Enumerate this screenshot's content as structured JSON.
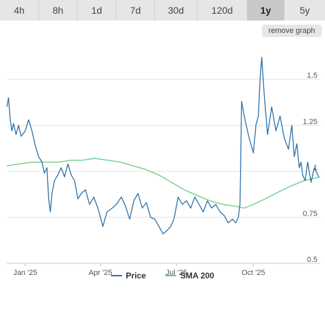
{
  "tabs": [
    {
      "label": "4h",
      "active": false
    },
    {
      "label": "8h",
      "active": false
    },
    {
      "label": "1d",
      "active": false
    },
    {
      "label": "7d",
      "active": false
    },
    {
      "label": "30d",
      "active": false
    },
    {
      "label": "120d",
      "active": false
    },
    {
      "label": "1y",
      "active": true
    },
    {
      "label": "5y",
      "active": false
    }
  ],
  "remove_graph_label": "remove graph",
  "chart_data": {
    "type": "line",
    "xlim": [
      "2024-12-10",
      "2025-12-20"
    ],
    "ylim": [
      0.5,
      1.7
    ],
    "grid": true,
    "legend_placement": "bottom-center",
    "x_ticks": [
      {
        "date": "2025-01-01",
        "label": "Jan '25"
      },
      {
        "date": "2025-04-01",
        "label": "Apr '25"
      },
      {
        "date": "2025-07-01",
        "label": "Jul '25"
      },
      {
        "date": "2025-10-01",
        "label": "Oct '25"
      }
    ],
    "y_ticks": [
      0.5,
      0.75,
      1,
      1.25,
      1.5
    ],
    "y_tick_labels": [
      "0.5",
      "0.75",
      "1",
      "1.25",
      "1.5"
    ],
    "series": [
      {
        "name": "Price",
        "color": "#2a6fa8",
        "x": [
          "2024-12-10",
          "2024-12-12",
          "2024-12-14",
          "2024-12-16",
          "2024-12-18",
          "2024-12-21",
          "2024-12-24",
          "2024-12-27",
          "2025-01-01",
          "2025-01-05",
          "2025-01-09",
          "2025-01-13",
          "2025-01-17",
          "2025-01-21",
          "2025-01-24",
          "2025-01-27",
          "2025-01-29",
          "2025-01-31",
          "2025-02-02",
          "2025-02-05",
          "2025-02-09",
          "2025-02-13",
          "2025-02-17",
          "2025-02-21",
          "2025-02-25",
          "2025-03-01",
          "2025-03-05",
          "2025-03-09",
          "2025-03-14",
          "2025-03-19",
          "2025-03-24",
          "2025-03-29",
          "2025-04-04",
          "2025-04-07",
          "2025-04-09",
          "2025-04-15",
          "2025-04-20",
          "2025-04-26",
          "2025-05-01",
          "2025-05-06",
          "2025-05-11",
          "2025-05-16",
          "2025-05-21",
          "2025-05-26",
          "2025-05-31",
          "2025-06-05",
          "2025-06-10",
          "2025-06-15",
          "2025-06-20",
          "2025-06-24",
          "2025-06-28",
          "2025-07-03",
          "2025-07-08",
          "2025-07-13",
          "2025-07-18",
          "2025-07-23",
          "2025-07-28",
          "2025-08-02",
          "2025-08-07",
          "2025-08-12",
          "2025-08-17",
          "2025-08-22",
          "2025-08-27",
          "2025-09-01",
          "2025-09-06",
          "2025-09-10",
          "2025-09-13",
          "2025-09-15",
          "2025-09-17",
          "2025-09-21",
          "2025-09-26",
          "2025-10-01",
          "2025-10-04",
          "2025-10-07",
          "2025-10-09",
          "2025-10-11",
          "2025-10-14",
          "2025-10-18",
          "2025-10-23",
          "2025-10-28",
          "2025-11-02",
          "2025-11-07",
          "2025-11-12",
          "2025-11-16",
          "2025-11-19",
          "2025-11-22",
          "2025-11-25",
          "2025-11-27",
          "2025-11-29",
          "2025-12-02",
          "2025-12-05",
          "2025-12-09",
          "2025-12-13",
          "2025-12-18"
        ],
        "values": [
          1.35,
          1.4,
          1.28,
          1.22,
          1.26,
          1.2,
          1.25,
          1.19,
          1.22,
          1.28,
          1.22,
          1.14,
          1.08,
          1.05,
          0.99,
          1.02,
          0.85,
          0.78,
          0.88,
          0.95,
          0.98,
          1.02,
          0.97,
          1.04,
          0.98,
          0.95,
          0.85,
          0.88,
          0.9,
          0.82,
          0.86,
          0.8,
          0.7,
          0.75,
          0.78,
          0.8,
          0.82,
          0.86,
          0.81,
          0.74,
          0.84,
          0.88,
          0.8,
          0.83,
          0.75,
          0.74,
          0.7,
          0.66,
          0.68,
          0.7,
          0.74,
          0.86,
          0.82,
          0.84,
          0.8,
          0.86,
          0.82,
          0.78,
          0.84,
          0.8,
          0.82,
          0.78,
          0.76,
          0.72,
          0.74,
          0.72,
          0.75,
          0.82,
          1.38,
          1.28,
          1.18,
          1.1,
          1.25,
          1.3,
          1.5,
          1.62,
          1.42,
          1.2,
          1.35,
          1.22,
          1.3,
          1.18,
          1.12,
          1.25,
          1.08,
          1.15,
          1.02,
          1.05,
          0.98,
          0.95,
          1.05,
          0.94,
          1.02,
          0.97
        ]
      },
      {
        "name": "SMA 200",
        "color": "#6dcf8a",
        "x": [
          "2024-12-10",
          "2024-12-25",
          "2025-01-10",
          "2025-01-25",
          "2025-02-10",
          "2025-02-25",
          "2025-03-10",
          "2025-03-25",
          "2025-04-10",
          "2025-04-25",
          "2025-05-10",
          "2025-05-25",
          "2025-06-10",
          "2025-06-25",
          "2025-07-10",
          "2025-07-25",
          "2025-08-10",
          "2025-08-25",
          "2025-09-10",
          "2025-09-20",
          "2025-10-01",
          "2025-10-15",
          "2025-11-01",
          "2025-11-15",
          "2025-12-01",
          "2025-12-20"
        ],
        "values": [
          1.03,
          1.04,
          1.05,
          1.05,
          1.05,
          1.06,
          1.06,
          1.07,
          1.06,
          1.05,
          1.03,
          1.01,
          0.98,
          0.94,
          0.9,
          0.87,
          0.84,
          0.82,
          0.81,
          0.8,
          0.82,
          0.85,
          0.89,
          0.92,
          0.95,
          0.97
        ]
      }
    ]
  }
}
